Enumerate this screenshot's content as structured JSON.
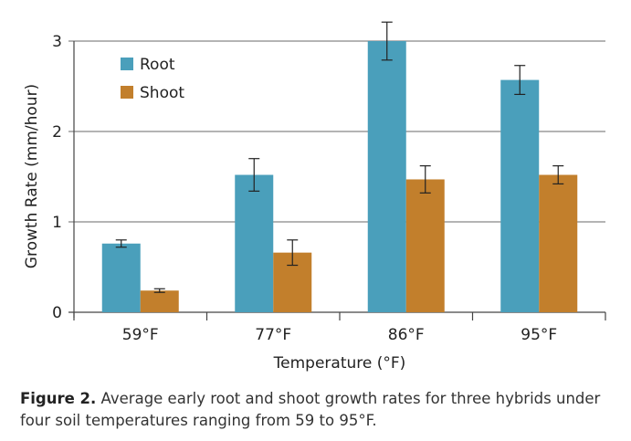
{
  "chart_data": {
    "type": "bar",
    "categories": [
      "59°F",
      "77°F",
      "86°F",
      "95°F"
    ],
    "series": [
      {
        "name": "Root",
        "color": "#4a9fbb",
        "values": [
          0.76,
          1.52,
          3.0,
          2.57
        ],
        "errors": [
          0.04,
          0.18,
          0.21,
          0.16
        ]
      },
      {
        "name": "Shoot",
        "color": "#c27f2c",
        "values": [
          0.24,
          0.66,
          1.47,
          1.52
        ],
        "errors": [
          0.02,
          0.14,
          0.15,
          0.1
        ]
      }
    ],
    "xlabel": "Temperature (°F)",
    "ylabel": "Growth Rate (mm/hour)",
    "ylim": [
      0,
      3
    ],
    "yticks": [
      "0",
      "1",
      "2",
      "3"
    ],
    "grid": true,
    "legend": "top-left"
  },
  "caption": {
    "label": "Figure 2.",
    "text": " Average early root and shoot growth rates for three hybrids under four soil temperatures ranging from 59 to 95°F."
  }
}
